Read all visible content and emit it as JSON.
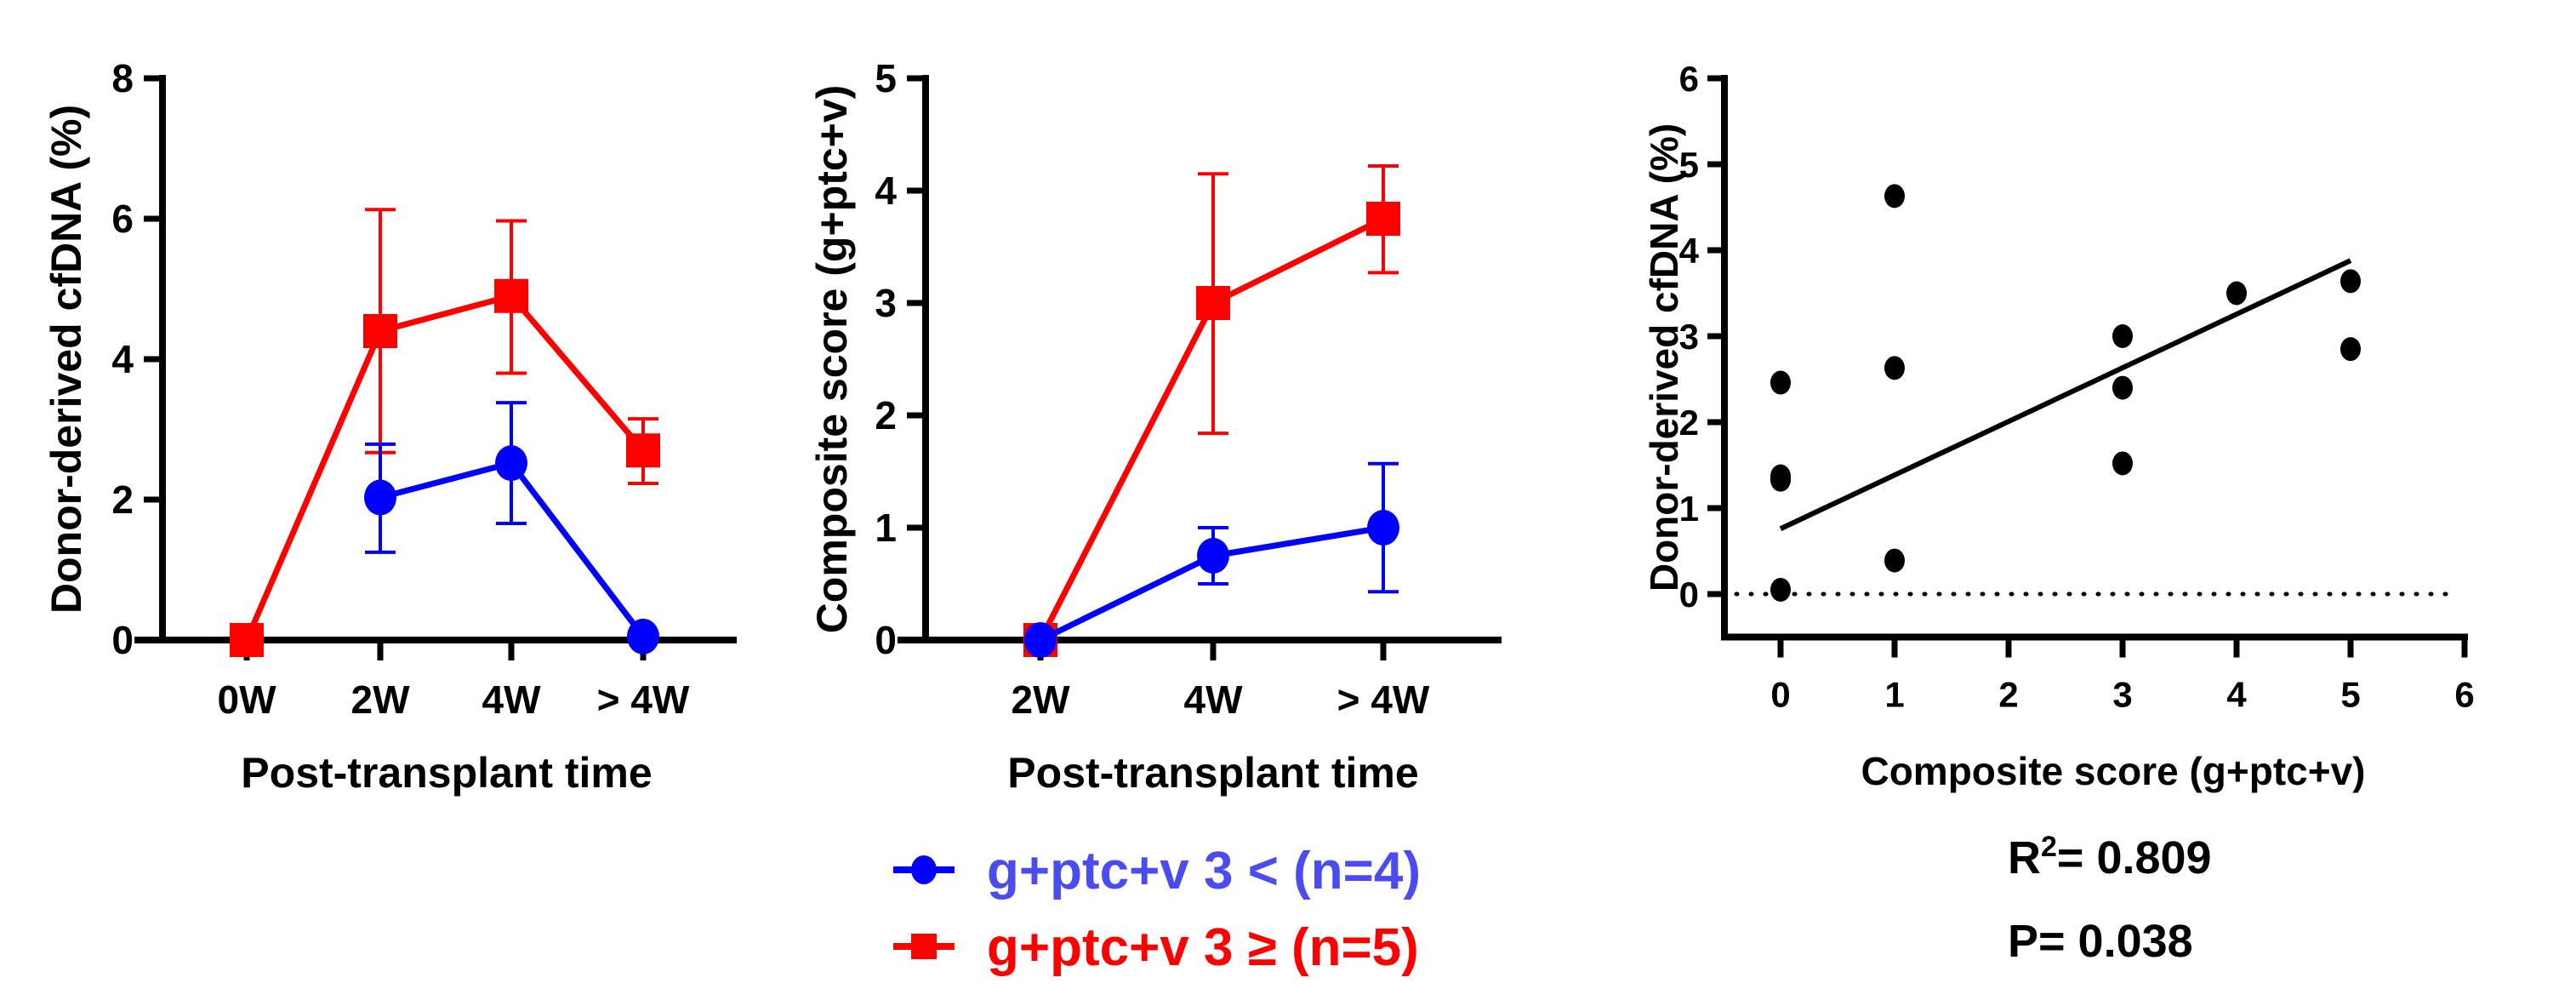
{
  "colors": {
    "low_group": "#0000ff",
    "low_group_text": "#4b4bf2",
    "high_group": "#ff0000",
    "axis": "#000000",
    "scatter": "#000000"
  },
  "legend": [
    {
      "label": "g+ptc+v 3  < (n=4)",
      "series": "low",
      "marker": "circle"
    },
    {
      "label": "g+ptc+v 3  ≥ (n=5)",
      "series": "high",
      "marker": "square"
    }
  ],
  "annotations": {
    "r2_label": "R",
    "r2_sup": "2",
    "r2_value": "= 0.809",
    "p_value": "P= 0.038"
  },
  "chart_data": [
    {
      "type": "line",
      "title": "",
      "xlabel": "Post-transplant time",
      "ylabel": "Donor-derived cfDNA (%)",
      "categories": [
        "0W",
        "2W",
        "4W",
        "> 4W"
      ],
      "ylim": [
        0,
        8
      ],
      "yticks": [
        0,
        2,
        4,
        6,
        8
      ],
      "grid": false,
      "series": [
        {
          "name": "g+ptc+v 3 < (n=4)",
          "key": "low",
          "marker": "circle",
          "values": [
            null,
            2.03,
            2.52,
            0.05
          ],
          "err_upper": [
            null,
            2.79,
            3.38,
            null
          ],
          "err_lower": [
            null,
            1.25,
            1.66,
            null
          ]
        },
        {
          "name": "g+ptc+v 3 ≥ (n=5)",
          "key": "high",
          "marker": "square",
          "values": [
            0.0,
            4.4,
            4.9,
            2.7
          ],
          "err_upper": [
            null,
            6.13,
            5.97,
            3.15
          ],
          "err_lower": [
            null,
            2.67,
            3.8,
            2.23
          ]
        }
      ]
    },
    {
      "type": "line",
      "title": "",
      "xlabel": "Post-transplant time",
      "ylabel": "Composite score (g+ptc+v)",
      "categories": [
        "2W",
        "4W",
        "> 4W"
      ],
      "ylim": [
        0,
        5
      ],
      "yticks": [
        0,
        1,
        2,
        3,
        4,
        5
      ],
      "grid": false,
      "series": [
        {
          "name": "g+ptc+v 3 < (n=4)",
          "key": "low",
          "marker": "circle",
          "values": [
            0.0,
            0.75,
            1.0
          ],
          "err_upper": [
            null,
            1.0,
            1.57
          ],
          "err_lower": [
            null,
            0.5,
            0.43
          ]
        },
        {
          "name": "g+ptc+v 3 ≥ (n=5)",
          "key": "high",
          "marker": "square",
          "values": [
            0.0,
            3.0,
            3.75
          ],
          "err_upper": [
            null,
            4.15,
            4.22
          ],
          "err_lower": [
            null,
            1.84,
            3.27
          ]
        }
      ]
    },
    {
      "type": "scatter",
      "title": "",
      "xlabel": "Composite score (g+ptc+v)",
      "ylabel": "Donor-derived cfDNA (%)",
      "xlim": [
        -0.5,
        6
      ],
      "ylim": [
        -0.5,
        6
      ],
      "xticks": [
        0,
        1,
        2,
        3,
        4,
        5,
        6
      ],
      "yticks": [
        0,
        1,
        2,
        3,
        4,
        5,
        6
      ],
      "grid": false,
      "points": [
        {
          "x": 0,
          "y": 2.46
        },
        {
          "x": 0,
          "y": 1.37
        },
        {
          "x": 0,
          "y": 1.33
        },
        {
          "x": 0,
          "y": 0.05
        },
        {
          "x": 1,
          "y": 4.63
        },
        {
          "x": 1,
          "y": 2.63
        },
        {
          "x": 1,
          "y": 0.39
        },
        {
          "x": 3,
          "y": 3.0
        },
        {
          "x": 3,
          "y": 2.4
        },
        {
          "x": 3,
          "y": 1.52
        },
        {
          "x": 4,
          "y": 3.5
        },
        {
          "x": 5,
          "y": 3.64
        },
        {
          "x": 5,
          "y": 2.85
        }
      ],
      "regression": {
        "x0": 0,
        "y0": 0.76,
        "x1": 5,
        "y1": 3.88
      },
      "reference_line": {
        "y": 0,
        "style": "dotted"
      },
      "stats": {
        "r_squared": 0.809,
        "p": 0.038
      }
    }
  ]
}
